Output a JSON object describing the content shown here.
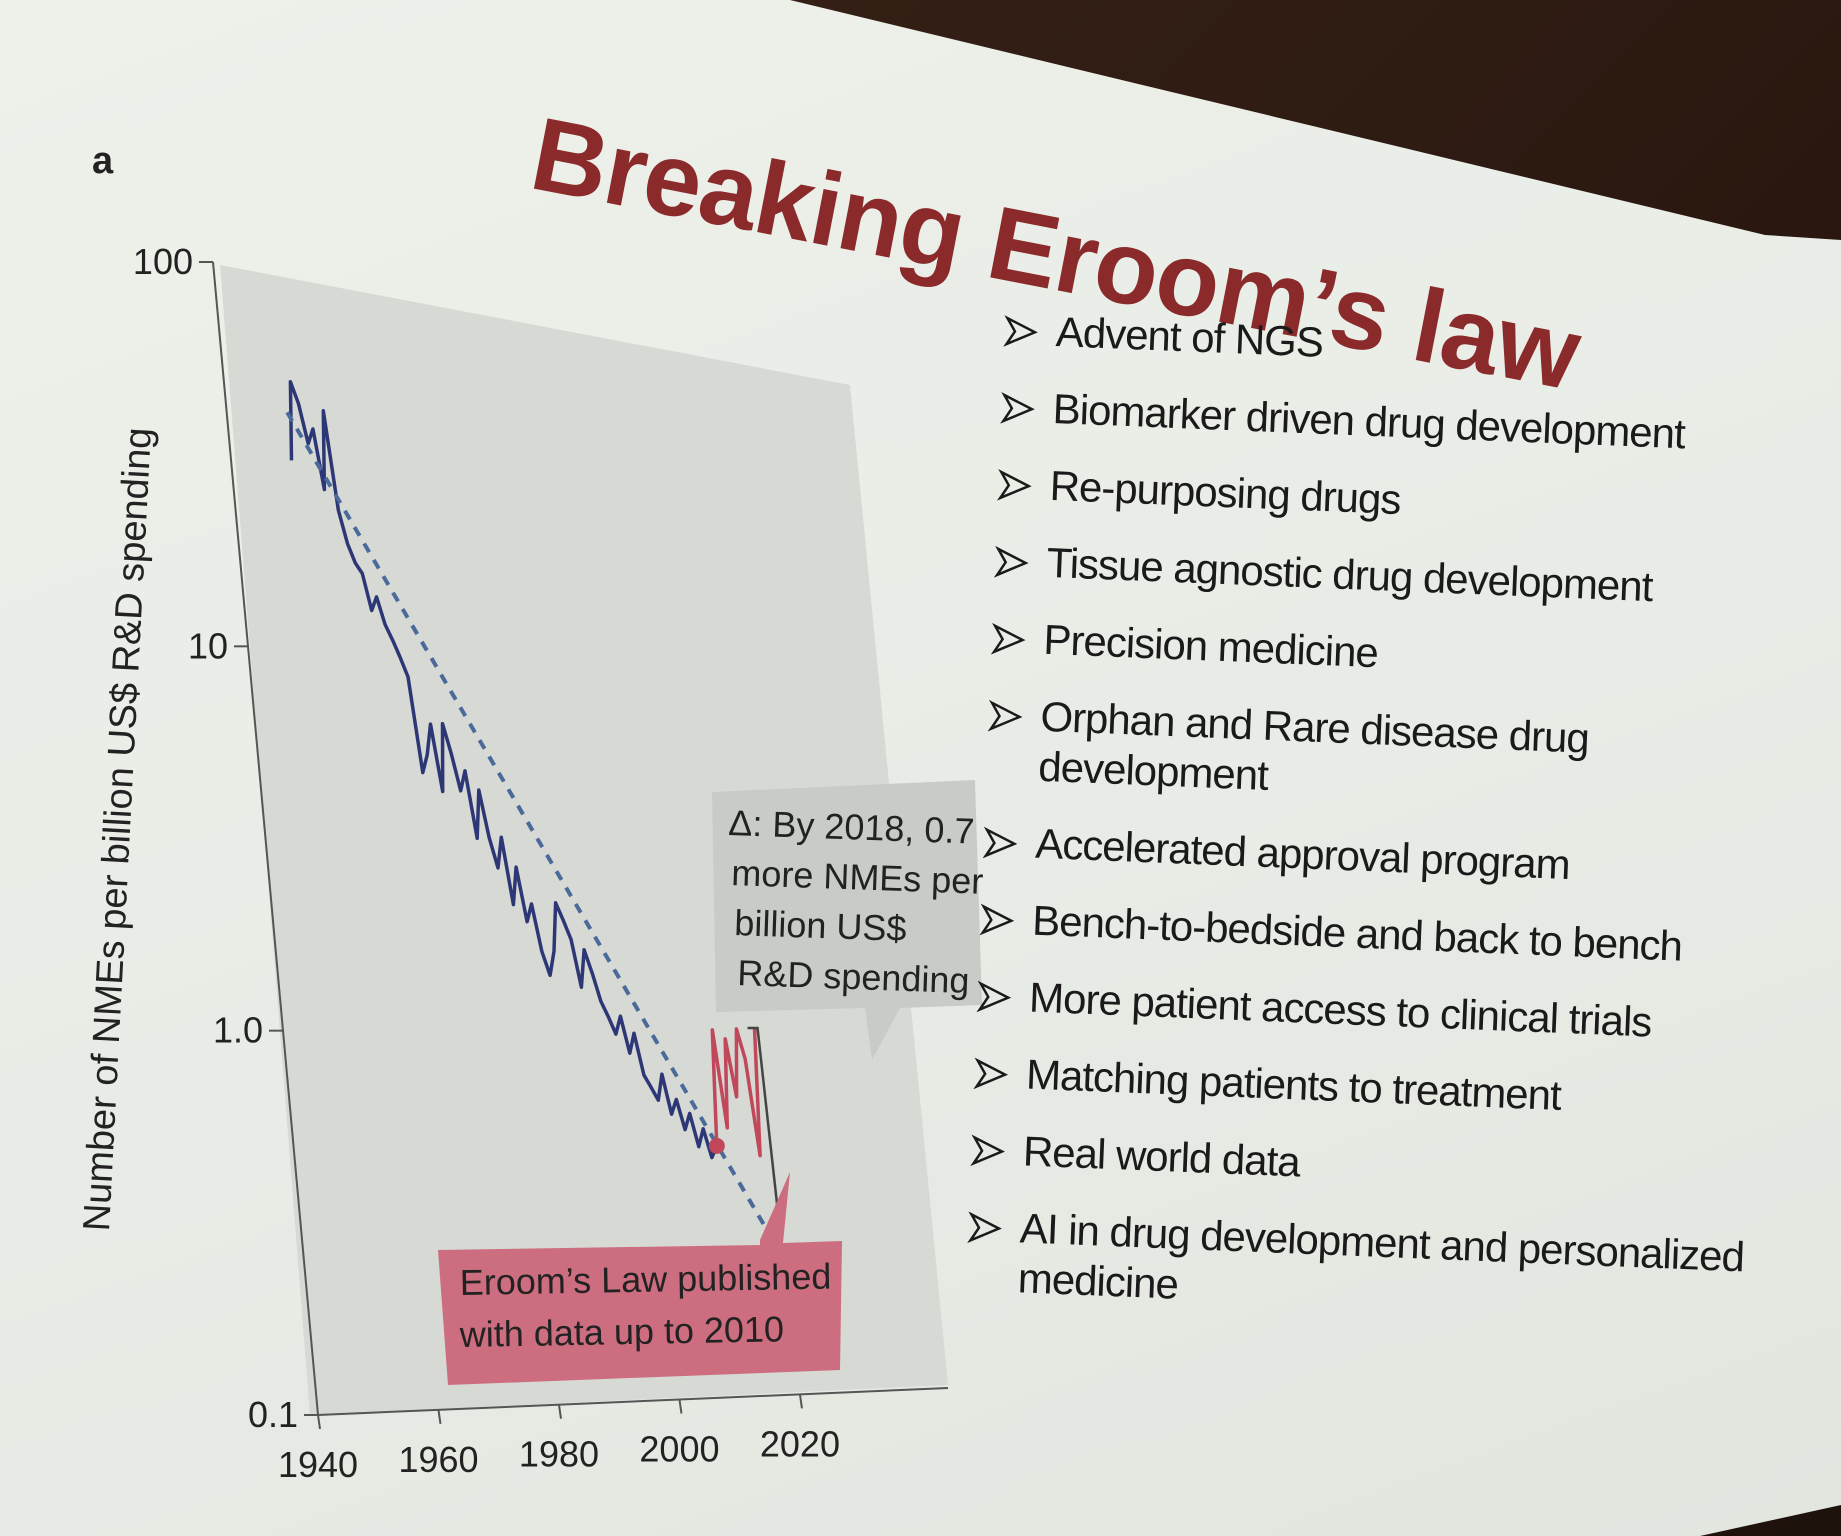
{
  "slide": {
    "title": "Breaking Eroom’s law",
    "panel_label": "a",
    "bullets": [
      "Advent of NGS",
      "Biomarker driven drug development",
      "Re-purposing drugs",
      "Tissue agnostic drug development",
      "Precision medicine",
      "Orphan and Rare disease drug development",
      "Accelerated approval program",
      "Bench-to-bedside and back to bench",
      "More patient access to clinical trials",
      "Matching patients to treatment",
      "Real world data",
      "AI in drug development and personalized medicine"
    ],
    "colors": {
      "title": "#8a2a2a",
      "bullet_arrow": "#1a1a1a",
      "screen": "#e9ede7"
    }
  },
  "chart_data": {
    "type": "line",
    "ylabel": "Number of NMEs per billion US$ R&D spending",
    "y_scale": "log",
    "ylim": [
      0.1,
      100
    ],
    "y_ticks": [
      {
        "value": 100,
        "label": "100"
      },
      {
        "value": 10,
        "label": "10"
      },
      {
        "value": 1,
        "label": "1.0"
      },
      {
        "value": 0.1,
        "label": "0.1"
      }
    ],
    "xlim": [
      1940,
      2020
    ],
    "x_ticks": [
      {
        "value": 1940,
        "label": "1940"
      },
      {
        "value": 1960,
        "label": "1960"
      },
      {
        "value": 1980,
        "label": "1980"
      },
      {
        "value": 2000,
        "label": "2000"
      },
      {
        "value": 2020,
        "label": "2020"
      }
    ],
    "series": [
      {
        "role": "observed-to-2010",
        "color": "#2e3775",
        "style": "solid",
        "x": [
          1950,
          1951,
          1952,
          1953,
          1954,
          1955,
          1956,
          1957,
          1958,
          1959,
          1960,
          1961,
          1962,
          1963,
          1964,
          1965,
          1966,
          1967,
          1968,
          1969,
          1970,
          1971,
          1972,
          1973,
          1974,
          1975,
          1976,
          1977,
          1978,
          1979,
          1980,
          1981,
          1982,
          1983,
          1984,
          1985,
          1986,
          1987,
          1988,
          1989,
          1990,
          1991,
          1992,
          1993,
          1994,
          1995,
          1996,
          1997,
          1998,
          1999,
          2000,
          2001,
          2002,
          2003,
          2004,
          2005,
          2006,
          2007,
          2008,
          2009,
          2010
        ],
        "y": [
          30,
          48,
          42,
          33,
          36,
          25,
          40,
          22,
          18,
          16,
          15,
          12,
          13,
          11,
          10,
          9,
          8,
          4.5,
          5,
          6,
          4,
          6,
          5,
          4,
          4.5,
          3,
          4,
          3,
          2.5,
          3,
          2,
          2.5,
          1.8,
          2,
          1.5,
          1.3,
          1.5,
          2,
          1.8,
          1.6,
          1.2,
          1.5,
          1.3,
          1.1,
          1.0,
          0.9,
          1.0,
          0.8,
          0.9,
          0.7,
          0.65,
          0.6,
          0.7,
          0.55,
          0.6,
          0.5,
          0.55,
          0.45,
          0.5,
          0.42,
          0.45
        ]
      },
      {
        "role": "observed-after-2010",
        "color": "#c0485a",
        "style": "solid",
        "x": [
          2010,
          2011,
          2012,
          2013,
          2014,
          2015,
          2016,
          2017,
          2018
        ],
        "y": [
          0.45,
          0.9,
          0.5,
          0.85,
          0.6,
          0.9,
          0.75,
          0.42,
          0.9
        ]
      },
      {
        "role": "trend",
        "color": "#4a6a9a",
        "style": "dashed",
        "x": [
          1950,
          2018
        ],
        "y": [
          40,
          0.25
        ]
      }
    ],
    "marker": {
      "x": 2010,
      "y": 0.45,
      "color": "#c0485a"
    },
    "annotations": {
      "eroom": {
        "lines": [
          "Eroom’s Law published",
          "with data up to 2010"
        ],
        "fill": "#cd6e80"
      },
      "delta": {
        "lines": [
          "Δ: By 2018, 0.7",
          "more NMEs per",
          "billion US$",
          "R&D spending"
        ],
        "fill": "#c8ccc6"
      }
    }
  }
}
